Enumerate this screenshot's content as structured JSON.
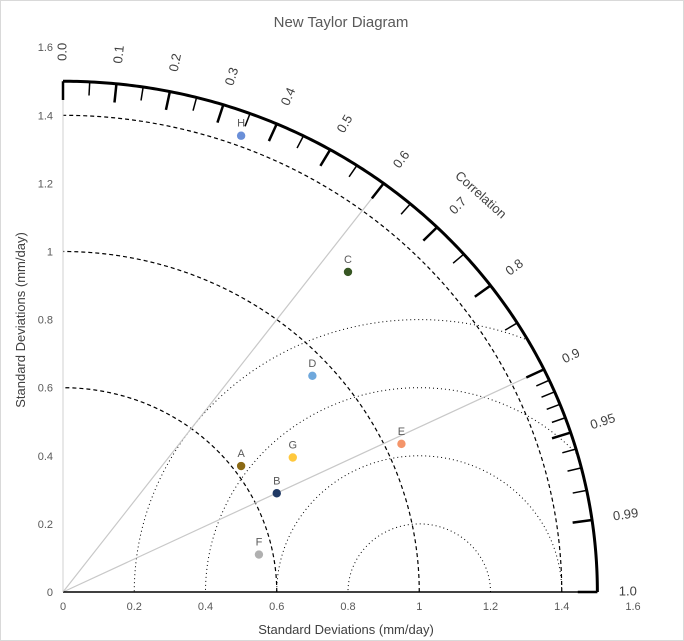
{
  "chart_data": {
    "type": "scatter",
    "subtype": "taylor-diagram",
    "title": "New Taylor Diagram",
    "xlabel": "Standard Deviations (mm/day)",
    "ylabel": "Standard Deviations (mm/day)",
    "xlim": [
      0,
      1.6
    ],
    "ylim": [
      0,
      1.6
    ],
    "x_ticks": [
      "0",
      "0.2",
      "0.4",
      "0.6",
      "0.8",
      "1",
      "1.2",
      "1.4",
      "1.6"
    ],
    "y_ticks": [
      "0",
      "0.2",
      "0.4",
      "0.6",
      "0.8",
      "1",
      "1.2",
      "1.4",
      "1.6"
    ],
    "correlation_axis_label": "Correlation",
    "correlation_labels": [
      "0.0",
      "0.1",
      "0.2",
      "0.3",
      "0.4",
      "0.5",
      "0.6",
      "0.7",
      "0.8",
      "0.9",
      "0.95",
      "0.99",
      "1.0"
    ],
    "correlation_axis_radius": 1.5,
    "std_arcs_dashed": [
      0.6,
      1.0,
      1.4
    ],
    "rmsd_reference": 1.0,
    "rmsd_arcs_dotted": [
      0.2,
      0.4,
      0.6,
      0.8
    ],
    "correlation_reference_lines": [
      0.6,
      0.9
    ],
    "points": [
      {
        "label": "A",
        "x": 0.5,
        "y": 0.37,
        "color": "#8b6914"
      },
      {
        "label": "B",
        "x": 0.6,
        "y": 0.29,
        "color": "#1f3864"
      },
      {
        "label": "C",
        "x": 0.8,
        "y": 0.94,
        "color": "#375623"
      },
      {
        "label": "D",
        "x": 0.7,
        "y": 0.635,
        "color": "#6fa8dc"
      },
      {
        "label": "E",
        "x": 0.95,
        "y": 0.435,
        "color": "#f4956a"
      },
      {
        "label": "F",
        "x": 0.55,
        "y": 0.11,
        "color": "#b0b0b0"
      },
      {
        "label": "G",
        "x": 0.645,
        "y": 0.395,
        "color": "#ffc83d"
      },
      {
        "label": "H",
        "x": 0.5,
        "y": 1.34,
        "color": "#6a8fd8"
      }
    ]
  }
}
